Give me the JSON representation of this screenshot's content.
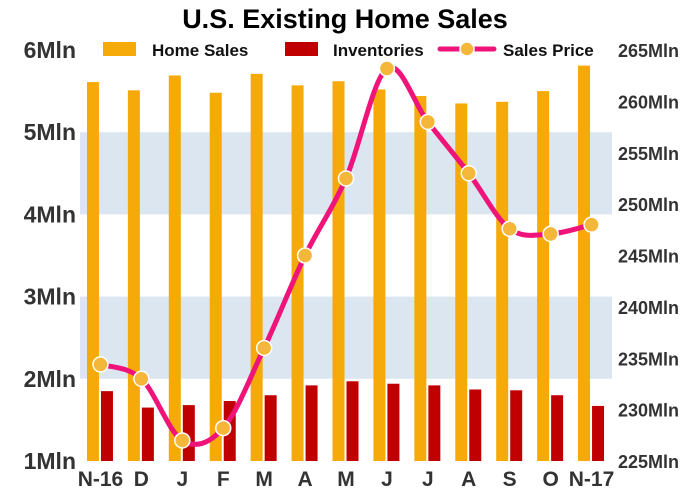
{
  "chart_data": {
    "type": "bar",
    "title": "U.S. Existing Home Sales",
    "categories": [
      "N-16",
      "D",
      "J",
      "F",
      "M",
      "A",
      "M",
      "J",
      "J",
      "A",
      "S",
      "O",
      "N-17"
    ],
    "series": [
      {
        "name": "Home Sales",
        "type": "bar",
        "axis": "left",
        "color": "#F5AA0A",
        "values": [
          5.61,
          5.51,
          5.69,
          5.48,
          5.71,
          5.57,
          5.62,
          5.52,
          5.44,
          5.35,
          5.37,
          5.5,
          5.81
        ]
      },
      {
        "name": "Inventories",
        "type": "bar",
        "axis": "left",
        "color": "#C00000",
        "values": [
          1.85,
          1.65,
          1.68,
          1.73,
          1.8,
          1.92,
          1.97,
          1.94,
          1.92,
          1.87,
          1.86,
          1.8,
          1.67
        ]
      },
      {
        "name": "Sales Price",
        "type": "line",
        "axis": "right",
        "color": "#F0147A",
        "marker_color": "#F5B73A",
        "values": [
          234.4,
          233.0,
          227.0,
          228.2,
          236.0,
          245.0,
          252.5,
          263.2,
          258.0,
          253.0,
          247.6,
          247.1,
          248.0
        ]
      }
    ],
    "left_axis": {
      "ylim": [
        1,
        6
      ],
      "ticks": [
        "1Mln",
        "2Mln",
        "3Mln",
        "4Mln",
        "5Mln",
        "6Mln"
      ]
    },
    "right_axis": {
      "ylim": [
        225,
        265
      ],
      "ticks": [
        "225Mln",
        "230Mln",
        "235Mln",
        "240Mln",
        "245Mln",
        "250Mln",
        "255Mln",
        "260Mln",
        "265Mln"
      ]
    },
    "grid": "alternating horizontal bands",
    "band_color": "#DCE6F0",
    "legend_position": "top"
  }
}
